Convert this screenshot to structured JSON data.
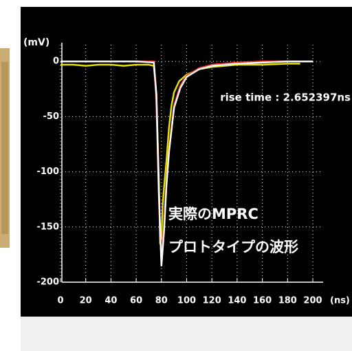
{
  "chart_data": {
    "type": "line",
    "y_label": "(mV)",
    "x_label": "(ns)",
    "annotations": [
      "rise time : 2.652397ns",
      "実際のMPRC",
      "プロトタイプの波形"
    ],
    "series": [
      {
        "color": "#e8e000",
        "x": [
          0,
          10,
          20,
          30,
          40,
          50,
          60,
          70,
          74,
          76,
          78,
          79,
          80,
          81,
          82,
          84,
          86,
          88,
          90,
          94,
          100,
          110,
          120,
          140,
          160,
          180,
          190
        ],
        "values": [
          -3,
          -3,
          -4,
          -3,
          -3,
          -4,
          -3,
          -3,
          -4,
          -30,
          -110,
          -165,
          -160,
          -130,
          -115,
          -90,
          -60,
          -40,
          -28,
          -18,
          -12,
          -7,
          -5,
          -3,
          -3,
          -2,
          -2
        ]
      },
      {
        "color": "#ff2020",
        "x": [
          0,
          20,
          40,
          60,
          74,
          76,
          78,
          80,
          82,
          84,
          86,
          90,
          95,
          100,
          110,
          120,
          140,
          160,
          180,
          200
        ],
        "values": [
          0,
          0,
          0,
          0,
          0,
          -35,
          -125,
          -180,
          -150,
          -110,
          -80,
          -40,
          -22,
          -13,
          -6,
          -3,
          -1,
          0,
          0,
          0
        ]
      },
      {
        "color": "#ffffff",
        "x": [
          0,
          20,
          40,
          60,
          74,
          76,
          78,
          80,
          82,
          84,
          86,
          90,
          95,
          100,
          110,
          120,
          140,
          160,
          180,
          200
        ],
        "values": [
          0,
          0,
          0,
          0,
          -1,
          -30,
          -120,
          -185,
          -155,
          -112,
          -82,
          -42,
          -24,
          -14,
          -7,
          -4,
          -2,
          -1,
          0,
          0
        ]
      }
    ],
    "xlim": [
      0,
      200
    ],
    "ylim": [
      -200,
      12
    ],
    "xticks": [
      0,
      20,
      40,
      60,
      80,
      100,
      120,
      140,
      160,
      180,
      200
    ],
    "yticks": [
      0,
      -50,
      -100,
      -150,
      -200
    ],
    "grid": true
  }
}
